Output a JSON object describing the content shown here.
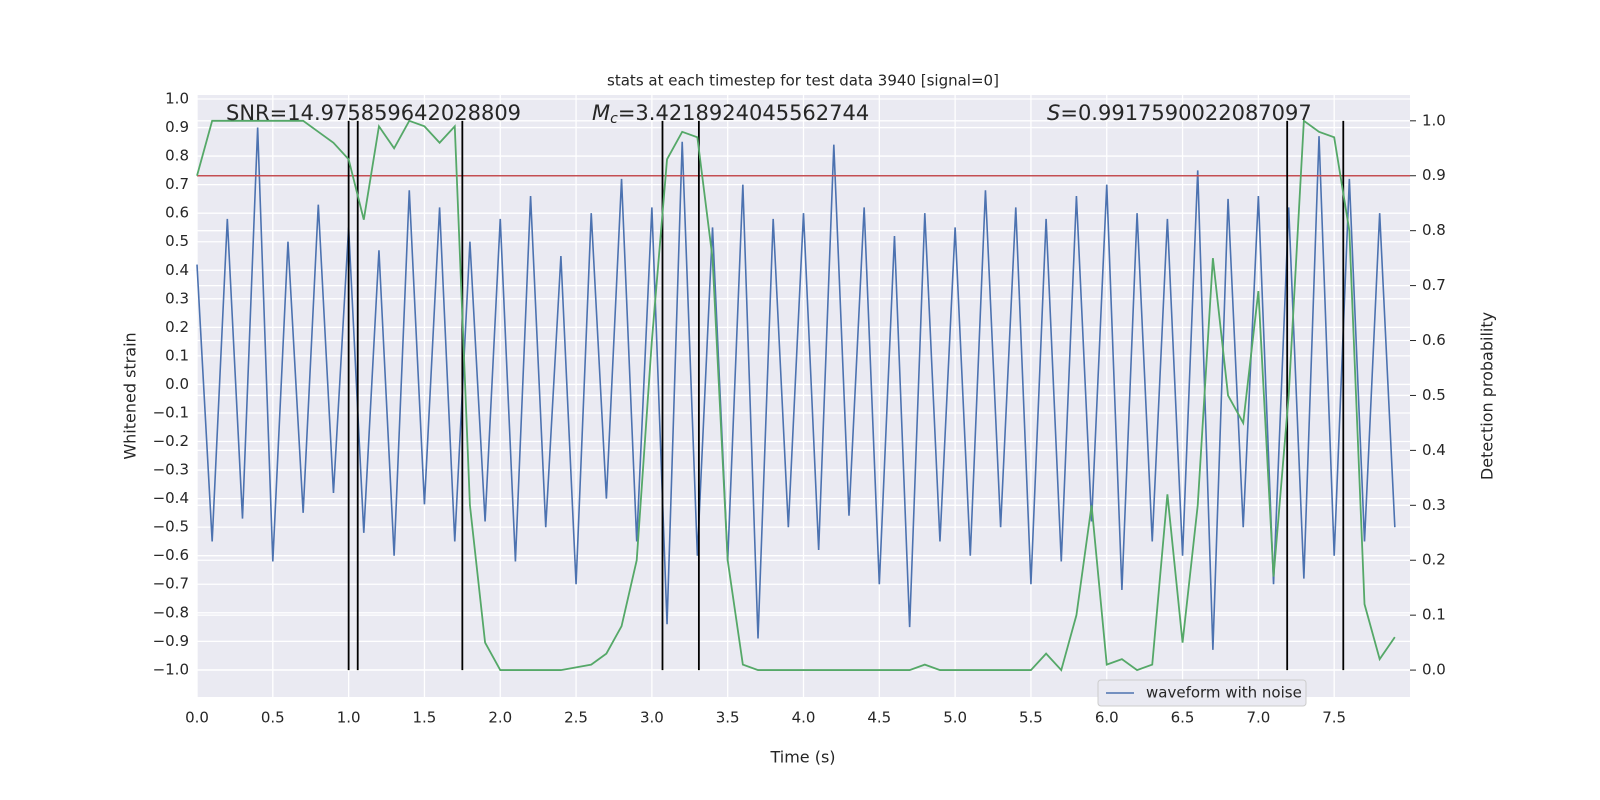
{
  "chart_data": {
    "type": "line",
    "title": "stats at each timestep for test data 3940 [signal=0]",
    "x_label": "Time (s)",
    "y_label": "Whitened strain",
    "y2_label": "Detection probability",
    "annotations": [
      {
        "text": "SNR=14.975859642028809"
      },
      {
        "symbol": "M",
        "subscript": "c",
        "text": "=3.4218924045562744"
      },
      {
        "symbol": "S",
        "text": "=0.9917590022087097"
      }
    ],
    "x": [
      0.0,
      0.1,
      0.2,
      0.3,
      0.4,
      0.5,
      0.6,
      0.7,
      0.8,
      0.9,
      1.0,
      1.1,
      1.2,
      1.3,
      1.4,
      1.5,
      1.6,
      1.7,
      1.8,
      1.9,
      2.0,
      2.1,
      2.2,
      2.3,
      2.4,
      2.5,
      2.6,
      2.7,
      2.8,
      2.9,
      3.0,
      3.1,
      3.2,
      3.3,
      3.4,
      3.5,
      3.6,
      3.7,
      3.8,
      3.9,
      4.0,
      4.1,
      4.2,
      4.3,
      4.4,
      4.5,
      4.6,
      4.7,
      4.8,
      4.9,
      5.0,
      5.1,
      5.2,
      5.3,
      5.4,
      5.5,
      5.6,
      5.7,
      5.8,
      5.9,
      6.0,
      6.1,
      6.2,
      6.3,
      6.4,
      6.5,
      6.6,
      6.7,
      6.8,
      6.9,
      7.0,
      7.1,
      7.2,
      7.3,
      7.4,
      7.5,
      7.6,
      7.7,
      7.8,
      7.9
    ],
    "series": [
      {
        "name": "waveform with noise",
        "color": "#4c72b0",
        "values": [
          0.42,
          -0.55,
          0.58,
          -0.47,
          0.9,
          -0.62,
          0.5,
          -0.45,
          0.63,
          -0.38,
          0.55,
          -0.52,
          0.47,
          -0.6,
          0.68,
          -0.42,
          0.62,
          -0.55,
          0.5,
          -0.48,
          0.58,
          -0.62,
          0.66,
          -0.5,
          0.45,
          -0.7,
          0.6,
          -0.4,
          0.72,
          -0.55,
          0.62,
          -0.84,
          0.85,
          -0.6,
          0.55,
          -0.62,
          0.7,
          -0.89,
          0.58,
          -0.5,
          0.6,
          -0.58,
          0.84,
          -0.46,
          0.62,
          -0.7,
          0.52,
          -0.85,
          0.6,
          -0.55,
          0.55,
          -0.6,
          0.68,
          -0.5,
          0.62,
          -0.7,
          0.58,
          -0.62,
          0.66,
          -0.48,
          0.7,
          -0.72,
          0.6,
          -0.55,
          0.58,
          -0.6,
          0.75,
          -0.93,
          0.65,
          -0.5,
          0.66,
          -0.7,
          0.62,
          -0.68,
          0.87,
          -0.6,
          0.72,
          -0.55,
          0.6,
          -0.5
        ]
      },
      {
        "color": "#55a868",
        "axis": "y2",
        "values": [
          0.9,
          1.0,
          1.0,
          1.0,
          1.0,
          1.0,
          1.0,
          1.0,
          0.98,
          0.96,
          0.93,
          0.82,
          0.99,
          0.95,
          1.0,
          0.99,
          0.96,
          0.99,
          0.3,
          0.05,
          0.0,
          0.0,
          0.0,
          0.0,
          0.0,
          0.005,
          0.01,
          0.03,
          0.08,
          0.2,
          0.6,
          0.93,
          0.98,
          0.97,
          0.75,
          0.2,
          0.01,
          0.0,
          0.0,
          0.0,
          0.0,
          0.0,
          0.0,
          0.0,
          0.0,
          0.0,
          0.0,
          0.0,
          0.01,
          0.0,
          0.0,
          0.0,
          0.0,
          0.0,
          0.0,
          0.0,
          0.03,
          0.0,
          0.1,
          0.3,
          0.01,
          0.02,
          0.0,
          0.01,
          0.32,
          0.05,
          0.3,
          0.75,
          0.5,
          0.45,
          0.69,
          0.17,
          0.5,
          1.0,
          0.98,
          0.97,
          0.8,
          0.12,
          0.02,
          0.06
        ]
      }
    ],
    "threshold": {
      "value": 0.9,
      "axis": "y2",
      "color": "#c44e52"
    },
    "vlines": {
      "values": [
        1.0,
        1.06,
        1.75,
        3.07,
        3.31,
        7.19,
        7.56
      ],
      "color": "#000000"
    },
    "xlim": [
      0,
      8.0
    ],
    "xticks": [
      {
        "value": 0,
        "label": "0.0"
      },
      0.5,
      {
        "value": 1,
        "label": "1.0"
      },
      1.5,
      {
        "value": 2,
        "label": "2.0"
      },
      2.5,
      {
        "value": 3,
        "label": "3.0"
      },
      3.5,
      {
        "value": 4,
        "label": "4.0"
      },
      4.5,
      {
        "value": 5,
        "label": "5.0"
      },
      5.5,
      {
        "value": 6,
        "label": "6.0"
      },
      6.5,
      {
        "value": 7,
        "label": "7.0"
      },
      7.5
    ],
    "ylim": [
      -1.095,
      1.014
    ],
    "yticks": [
      {
        "value": -1,
        "label": "−1.0"
      },
      {
        "value": -0.9,
        "label": "−0.9"
      },
      {
        "value": -0.8,
        "label": "−0.8"
      },
      {
        "value": -0.7,
        "label": "−0.7"
      },
      {
        "value": -0.6,
        "label": "−0.6"
      },
      {
        "value": -0.5,
        "label": "−0.5"
      },
      {
        "value": -0.4,
        "label": "−0.4"
      },
      {
        "value": -0.3,
        "label": "−0.3"
      },
      {
        "value": -0.2,
        "label": "−0.2"
      },
      {
        "value": -0.1,
        "label": "−0.1"
      },
      {
        "value": 0,
        "label": "0.0"
      },
      0.1,
      0.2,
      0.3,
      0.4,
      0.5,
      0.6,
      0.7,
      0.8,
      0.9,
      {
        "value": 1,
        "label": "1.0"
      }
    ],
    "y2lim": [
      -0.049,
      1.047
    ],
    "y2ticks": [
      {
        "value": 0,
        "label": "0.0"
      },
      0.1,
      0.2,
      0.3,
      0.4,
      0.5,
      0.6,
      0.7,
      0.8,
      0.9,
      {
        "value": 1,
        "label": "1.0"
      }
    ],
    "grid": true,
    "legend": "lower right"
  }
}
